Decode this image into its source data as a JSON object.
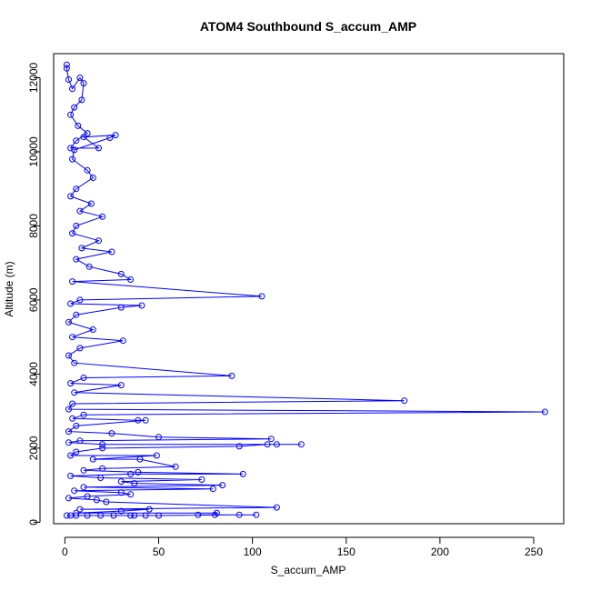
{
  "chart_data": {
    "type": "line",
    "title": "ATOM4 Southbound S_accum_AMP",
    "xlabel": "S_accum_AMP",
    "ylabel": "Altitude (m)",
    "xlim": [
      -6,
      266
    ],
    "ylim": [
      -40,
      12650
    ],
    "xticks": [
      "0",
      "50",
      "100",
      "150",
      "200",
      "250"
    ],
    "yticks": [
      "0",
      "2000",
      "4000",
      "6000",
      "8000",
      "10000",
      "12000"
    ],
    "grid": false,
    "colors": {
      "series": "#0000ff",
      "axis": "#000000",
      "background": "#ffffff"
    },
    "series": [
      {
        "points": [
          [
            1,
            12350
          ],
          [
            1,
            12250
          ],
          [
            2,
            11950
          ],
          [
            4,
            11700
          ],
          [
            8,
            12000
          ],
          [
            10,
            11850
          ],
          [
            9,
            11400
          ],
          [
            5,
            11200
          ],
          [
            3,
            11000
          ],
          [
            7,
            10700
          ],
          [
            12,
            10500
          ],
          [
            6,
            10300
          ],
          [
            3,
            10100
          ],
          [
            18,
            10100
          ],
          [
            10,
            10400
          ],
          [
            27,
            10450
          ],
          [
            24,
            10380
          ],
          [
            5,
            10050
          ],
          [
            4,
            9800
          ],
          [
            12,
            9500
          ],
          [
            15,
            9300
          ],
          [
            6,
            9000
          ],
          [
            3,
            8800
          ],
          [
            14,
            8600
          ],
          [
            8,
            8400
          ],
          [
            20,
            8250
          ],
          [
            6,
            8000
          ],
          [
            4,
            7800
          ],
          [
            18,
            7600
          ],
          [
            9,
            7400
          ],
          [
            25,
            7300
          ],
          [
            6,
            7100
          ],
          [
            13,
            6900
          ],
          [
            30,
            6700
          ],
          [
            35,
            6550
          ],
          [
            4,
            6500
          ],
          [
            105,
            6100
          ],
          [
            8,
            6000
          ],
          [
            3,
            5900
          ],
          [
            41,
            5850
          ],
          [
            30,
            5800
          ],
          [
            6,
            5600
          ],
          [
            2,
            5400
          ],
          [
            15,
            5200
          ],
          [
            4,
            5000
          ],
          [
            31,
            4900
          ],
          [
            8,
            4700
          ],
          [
            2,
            4500
          ],
          [
            5,
            4300
          ],
          [
            89,
            3950
          ],
          [
            10,
            3900
          ],
          [
            3,
            3750
          ],
          [
            30,
            3700
          ],
          [
            5,
            3500
          ],
          [
            181,
            3280
          ],
          [
            4,
            3200
          ],
          [
            2,
            3050
          ],
          [
            256,
            2980
          ],
          [
            10,
            2900
          ],
          [
            4,
            2800
          ],
          [
            39,
            2750
          ],
          [
            43,
            2750
          ],
          [
            6,
            2600
          ],
          [
            2,
            2450
          ],
          [
            25,
            2400
          ],
          [
            50,
            2300
          ],
          [
            110,
            2250
          ],
          [
            8,
            2200
          ],
          [
            2,
            2150
          ],
          [
            20,
            2100
          ],
          [
            126,
            2100
          ],
          [
            113,
            2100
          ],
          [
            108,
            2100
          ],
          [
            93,
            2050
          ],
          [
            20,
            2000
          ],
          [
            6,
            1900
          ],
          [
            3,
            1800
          ],
          [
            49,
            1800
          ],
          [
            15,
            1700
          ],
          [
            40,
            1700
          ],
          [
            59,
            1500
          ],
          [
            20,
            1450
          ],
          [
            10,
            1400
          ],
          [
            39,
            1350
          ],
          [
            95,
            1300
          ],
          [
            35,
            1300
          ],
          [
            3,
            1250
          ],
          [
            19,
            1200
          ],
          [
            73,
            1150
          ],
          [
            30,
            1100
          ],
          [
            37,
            1050
          ],
          [
            84,
            1000
          ],
          [
            10,
            950
          ],
          [
            79,
            900
          ],
          [
            5,
            850
          ],
          [
            30,
            800
          ],
          [
            35,
            750
          ],
          [
            12,
            700
          ],
          [
            2,
            650
          ],
          [
            17,
            600
          ],
          [
            22,
            550
          ],
          [
            113,
            400
          ],
          [
            8,
            350
          ],
          [
            45,
            350
          ],
          [
            30,
            300
          ],
          [
            6,
            250
          ],
          [
            81,
            250
          ],
          [
            80,
            200
          ],
          [
            71,
            200
          ],
          [
            102,
            200
          ],
          [
            93,
            200
          ],
          [
            50,
            180
          ],
          [
            43,
            180
          ],
          [
            37,
            180
          ],
          [
            35,
            180
          ],
          [
            26,
            180
          ],
          [
            19,
            180
          ],
          [
            12,
            180
          ],
          [
            6,
            180
          ],
          [
            3,
            180
          ],
          [
            1,
            180
          ]
        ]
      }
    ]
  }
}
